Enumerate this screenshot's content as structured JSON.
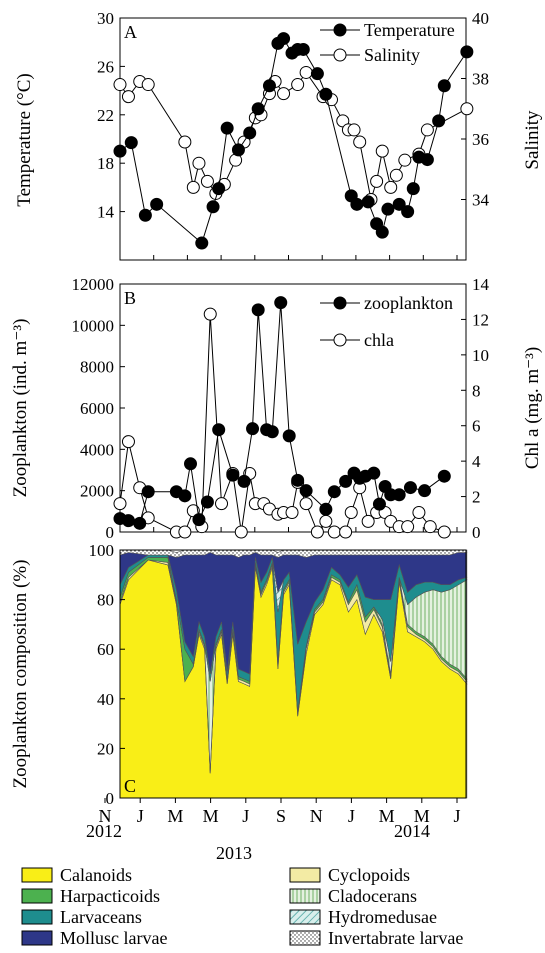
{
  "chart_data": [
    {
      "type": "line",
      "panel_label": "A",
      "ylabel": "Temperature (°C)",
      "y2label": "Salinity",
      "ylim": [
        10,
        30
      ],
      "y_ticks": [
        14,
        18,
        22,
        26,
        30
      ],
      "y2lim": [
        32,
        40
      ],
      "y2_ticks": [
        34,
        36,
        38,
        40
      ],
      "grid": false,
      "legend": "top-right",
      "series": [
        {
          "name": "Temperature",
          "axis": "left",
          "marker": "filled-circle",
          "points": [
            [
              0.0,
              19.0
            ],
            [
              0.4,
              19.7
            ],
            [
              0.9,
              13.7
            ],
            [
              1.3,
              14.6
            ],
            [
              2.9,
              11.4
            ],
            [
              3.3,
              14.4
            ],
            [
              3.5,
              15.9
            ],
            [
              3.8,
              20.9
            ],
            [
              4.2,
              19.1
            ],
            [
              4.6,
              20.5
            ],
            [
              4.9,
              22.5
            ],
            [
              5.3,
              24.4
            ],
            [
              5.6,
              27.9
            ],
            [
              5.8,
              28.3
            ],
            [
              6.1,
              27.1
            ],
            [
              6.3,
              27.4
            ],
            [
              6.5,
              27.4
            ],
            [
              7.0,
              25.4
            ],
            [
              7.3,
              23.7
            ],
            [
              8.2,
              15.3
            ],
            [
              8.4,
              14.6
            ],
            [
              8.8,
              14.8
            ],
            [
              9.1,
              13.0
            ],
            [
              9.3,
              12.3
            ],
            [
              9.5,
              14.2
            ],
            [
              9.9,
              14.6
            ],
            [
              10.2,
              14.0
            ],
            [
              10.4,
              15.9
            ],
            [
              10.6,
              18.5
            ],
            [
              10.9,
              18.3
            ],
            [
              11.3,
              21.5
            ],
            [
              11.5,
              24.4
            ],
            [
              12.3,
              27.2
            ]
          ]
        },
        {
          "name": "Salinity",
          "axis": "right",
          "marker": "open-circle",
          "points": [
            [
              0.0,
              37.8
            ],
            [
              0.3,
              37.4
            ],
            [
              0.7,
              37.9
            ],
            [
              1.0,
              37.8
            ],
            [
              2.3,
              35.9
            ],
            [
              2.6,
              34.4
            ],
            [
              2.8,
              35.2
            ],
            [
              3.1,
              34.6
            ],
            [
              3.4,
              34.2
            ],
            [
              3.7,
              34.5
            ],
            [
              4.1,
              35.3
            ],
            [
              4.4,
              35.9
            ],
            [
              4.8,
              36.7
            ],
            [
              5.0,
              36.8
            ],
            [
              5.3,
              37.5
            ],
            [
              5.5,
              37.9
            ],
            [
              5.8,
              37.5
            ],
            [
              6.3,
              37.8
            ],
            [
              6.6,
              38.2
            ],
            [
              7.2,
              37.4
            ],
            [
              7.5,
              37.3
            ],
            [
              7.9,
              36.6
            ],
            [
              8.1,
              36.3
            ],
            [
              8.3,
              36.3
            ],
            [
              8.5,
              35.9
            ],
            [
              8.9,
              34.0
            ],
            [
              9.1,
              34.6
            ],
            [
              9.3,
              35.6
            ],
            [
              9.6,
              34.4
            ],
            [
              9.8,
              34.8
            ],
            [
              10.1,
              35.3
            ],
            [
              10.6,
              35.5
            ],
            [
              10.9,
              36.3
            ],
            [
              12.3,
              37.0
            ]
          ]
        }
      ]
    },
    {
      "type": "line",
      "panel_label": "B",
      "ylabel": "Zooplankton (ind. m⁻³)",
      "y2label": "Chl a (mg. m⁻³)",
      "ylim": [
        0,
        12000
      ],
      "y_ticks": [
        0,
        2000,
        4000,
        6000,
        8000,
        10000,
        12000
      ],
      "y2lim": [
        0,
        14
      ],
      "y2_ticks": [
        0,
        2,
        4,
        6,
        8,
        10,
        12,
        14
      ],
      "grid": false,
      "legend": "top-right",
      "series": [
        {
          "name": "zooplankton",
          "axis": "left",
          "marker": "filled-circle",
          "points": [
            [
              0.0,
              650
            ],
            [
              0.3,
              550
            ],
            [
              0.7,
              420
            ],
            [
              1.0,
              1950
            ],
            [
              2.0,
              1950
            ],
            [
              2.3,
              1750
            ],
            [
              2.5,
              3300
            ],
            [
              2.8,
              600
            ],
            [
              3.1,
              1450
            ],
            [
              3.5,
              4950
            ],
            [
              4.0,
              2750
            ],
            [
              4.4,
              2450
            ],
            [
              4.7,
              5000
            ],
            [
              4.9,
              10750
            ],
            [
              5.2,
              4950
            ],
            [
              5.4,
              4850
            ],
            [
              5.7,
              11100
            ],
            [
              6.0,
              4650
            ],
            [
              6.3,
              2500
            ],
            [
              6.6,
              2000
            ],
            [
              7.3,
              1100
            ],
            [
              7.6,
              1950
            ],
            [
              8.0,
              2450
            ],
            [
              8.3,
              2850
            ],
            [
              8.5,
              2600
            ],
            [
              8.7,
              2700
            ],
            [
              9.0,
              2850
            ],
            [
              9.2,
              1350
            ],
            [
              9.4,
              2200
            ],
            [
              9.6,
              1800
            ],
            [
              9.9,
              1800
            ],
            [
              10.3,
              2150
            ],
            [
              10.8,
              2000
            ],
            [
              11.5,
              2700
            ]
          ]
        },
        {
          "name": "chla",
          "axis": "right",
          "marker": "open-circle",
          "points": [
            [
              0.0,
              1.6
            ],
            [
              0.3,
              5.1
            ],
            [
              0.7,
              2.5
            ],
            [
              1.0,
              0.8
            ],
            [
              2.0,
              0.0
            ],
            [
              2.3,
              0.0
            ],
            [
              2.6,
              1.2
            ],
            [
              2.9,
              0.3
            ],
            [
              3.2,
              12.3
            ],
            [
              3.6,
              1.6
            ],
            [
              4.0,
              3.3
            ],
            [
              4.3,
              0.0
            ],
            [
              4.6,
              3.3
            ],
            [
              4.8,
              1.6
            ],
            [
              5.1,
              1.6
            ],
            [
              5.3,
              1.3
            ],
            [
              5.6,
              1.0
            ],
            [
              5.8,
              1.1
            ],
            [
              6.1,
              1.1
            ],
            [
              6.3,
              2.8
            ],
            [
              6.6,
              1.6
            ],
            [
              7.0,
              0.0
            ],
            [
              7.3,
              0.6
            ],
            [
              7.6,
              0.0
            ],
            [
              8.0,
              0.0
            ],
            [
              8.2,
              1.1
            ],
            [
              8.5,
              2.5
            ],
            [
              8.8,
              0.6
            ],
            [
              9.1,
              1.1
            ],
            [
              9.4,
              1.1
            ],
            [
              9.6,
              0.6
            ],
            [
              9.9,
              0.3
            ],
            [
              10.2,
              0.3
            ],
            [
              10.6,
              1.1
            ],
            [
              11.0,
              0.3
            ],
            [
              11.5,
              0.0
            ]
          ]
        }
      ]
    },
    {
      "type": "area",
      "stacked": true,
      "panel_label": "C",
      "ylabel": "Zooplankton composition (%)",
      "ylim": [
        0,
        100
      ],
      "y_ticks": [
        0,
        20,
        40,
        60,
        80,
        100
      ],
      "grid": false,
      "legend": "bottom",
      "x_ticks": [
        "N",
        "J",
        "M",
        "M",
        "J",
        "S",
        "N",
        "J",
        "M",
        "M",
        "J"
      ],
      "year_labels": [
        {
          "label": "2012",
          "at": 0.15
        },
        {
          "label": "2013",
          "at": 4.5
        },
        {
          "label": "2014",
          "at": 9.8
        }
      ],
      "x": [
        0.0,
        0.3,
        1.0,
        1.7,
        2.0,
        2.3,
        2.6,
        2.8,
        3.0,
        3.2,
        3.4,
        3.6,
        3.8,
        4.0,
        4.2,
        4.4,
        4.6,
        4.8,
        5.0,
        5.2,
        5.4,
        5.6,
        5.8,
        6.0,
        6.3,
        6.6,
        6.9,
        7.2,
        7.5,
        7.8,
        8.1,
        8.4,
        8.7,
        9.0,
        9.3,
        9.6,
        9.9,
        10.2,
        10.5,
        10.8,
        11.1,
        11.4,
        11.7,
        12.0,
        12.3
      ],
      "series": [
        {
          "name": "Calanoids",
          "color": "#f9ee17",
          "pattern": "solid",
          "values": [
            78,
            88,
            96,
            94,
            78,
            47,
            53,
            66,
            60,
            10,
            60,
            66,
            46,
            66,
            47,
            46,
            45,
            93,
            81,
            86,
            93,
            52,
            82,
            86,
            33,
            58,
            74,
            78,
            88,
            86,
            75,
            80,
            66,
            74,
            67,
            48,
            87,
            67,
            65,
            63,
            60,
            55,
            52,
            50,
            46
          ]
        },
        {
          "name": "Cyclopoids",
          "color": "#f3eba4",
          "pattern": "solid",
          "values": [
            1,
            1,
            0,
            1,
            1,
            0,
            0,
            1,
            1,
            0,
            1,
            1,
            1,
            1,
            1,
            1,
            1,
            1,
            1,
            1,
            1,
            2,
            1,
            1,
            1,
            2,
            1,
            1,
            1,
            1,
            3,
            4,
            5,
            2,
            2,
            1,
            1,
            2,
            1,
            1,
            1,
            1,
            1,
            1,
            1
          ]
        },
        {
          "name": "Harpacticoids",
          "color": "#4cb14f",
          "pattern": "solid",
          "values": [
            2,
            2,
            1,
            2,
            1,
            13,
            1,
            1,
            1,
            1,
            1,
            1,
            1,
            1,
            1,
            1,
            1,
            1,
            1,
            1,
            1,
            1,
            1,
            1,
            1,
            1,
            1,
            1,
            1,
            1,
            1,
            2,
            2,
            1,
            1,
            1,
            1,
            1,
            1,
            1,
            1,
            1,
            1,
            1,
            1
          ]
        },
        {
          "name": "Cladocerans",
          "color": "#c6e3bd",
          "pattern": "vlines",
          "values": [
            0,
            0,
            0,
            0,
            0,
            0,
            0,
            0,
            0,
            36,
            0,
            0,
            0,
            0,
            0,
            0,
            0,
            0,
            0,
            0,
            0,
            0,
            0,
            0,
            0,
            0,
            0,
            0,
            0,
            0,
            0,
            0,
            0,
            0,
            2,
            5,
            0,
            8,
            14,
            18,
            22,
            26,
            30,
            34,
            40
          ]
        },
        {
          "name": "Larvaceans",
          "color": "#1e8d8e",
          "pattern": "solid",
          "values": [
            5,
            2,
            1,
            1,
            4,
            3,
            3,
            3,
            3,
            3,
            3,
            3,
            3,
            3,
            3,
            3,
            3,
            2,
            4,
            3,
            2,
            20,
            4,
            3,
            27,
            10,
            3,
            4,
            3,
            2,
            6,
            4,
            8,
            3,
            8,
            25,
            5,
            5,
            5,
            4,
            3,
            3,
            2,
            2,
            1
          ]
        },
        {
          "name": "Hydromedusae",
          "color": "#a9d8d4",
          "pattern": "diag",
          "values": [
            0,
            0,
            0,
            0,
            0,
            0,
            0,
            0,
            0,
            0,
            0,
            0,
            0,
            0,
            0,
            0,
            0,
            0,
            0,
            0,
            0,
            8,
            0,
            0,
            0,
            0,
            0,
            0,
            0,
            0,
            0,
            0,
            0,
            0,
            0,
            0,
            0,
            0,
            0,
            0,
            0,
            0,
            0,
            0,
            0
          ]
        },
        {
          "name": "Mollusc larvae",
          "color": "#2e3788",
          "pattern": "solid",
          "values": [
            12,
            6,
            0,
            0,
            13,
            35,
            41,
            27,
            33,
            49,
            33,
            27,
            47,
            27,
            45,
            47,
            48,
            2,
            11,
            7,
            1,
            14,
            10,
            7,
            36,
            26,
            19,
            14,
            5,
            8,
            13,
            8,
            17,
            18,
            18,
            18,
            4,
            15,
            12,
            11,
            11,
            12,
            12,
            11,
            10
          ]
        },
        {
          "name": "Invertabrate larvae",
          "color": "#ffffff",
          "pattern": "dots",
          "values": [
            2,
            1,
            2,
            2,
            2,
            2,
            2,
            2,
            2,
            1,
            2,
            2,
            2,
            2,
            3,
            2,
            2,
            2,
            2,
            2,
            2,
            2,
            2,
            2,
            2,
            3,
            2,
            2,
            2,
            2,
            2,
            2,
            2,
            2,
            2,
            2,
            2,
            2,
            2,
            2,
            2,
            2,
            2,
            2,
            1
          ]
        }
      ]
    }
  ]
}
